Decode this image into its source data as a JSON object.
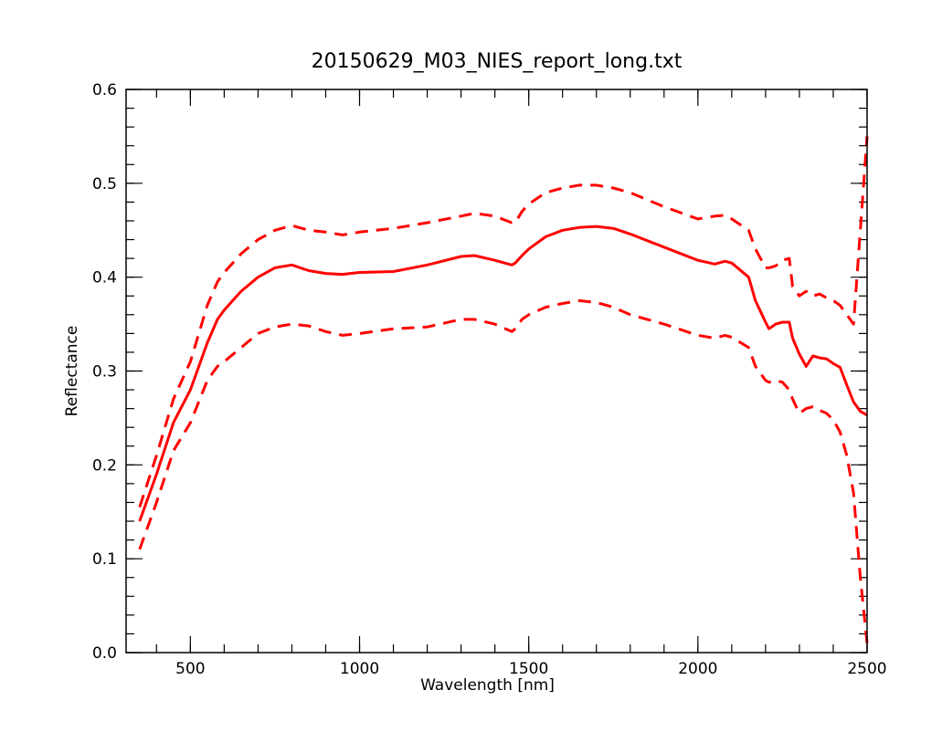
{
  "chart_data": {
    "type": "line",
    "title": "20150629_M03_NIES_report_long.txt",
    "xlabel": "Wavelength [nm]",
    "ylabel": "Reflectance",
    "xlim": [
      310,
      2500
    ],
    "ylim": [
      0.0,
      0.6
    ],
    "x_ticks": [
      500,
      1000,
      1500,
      2000,
      2500
    ],
    "x_tick_labels": [
      "500",
      "1000",
      "1500",
      "2000",
      "2500"
    ],
    "y_ticks": [
      0.0,
      0.1,
      0.2,
      0.3,
      0.4,
      0.5,
      0.6
    ],
    "y_tick_labels": [
      "0.0",
      "0.1",
      "0.2",
      "0.3",
      "0.4",
      "0.5",
      "0.6"
    ],
    "x_minor_step": 100,
    "y_minor_step": 0.02,
    "grid": false,
    "legend": "none",
    "colors": {
      "series": "#ff0000",
      "axes": "#000000"
    },
    "series": [
      {
        "style": "solid",
        "x": [
          350,
          400,
          450,
          500,
          550,
          580,
          600,
          650,
          700,
          750,
          800,
          850,
          900,
          950,
          1000,
          1100,
          1200,
          1300,
          1340,
          1400,
          1450,
          1460,
          1480,
          1500,
          1550,
          1600,
          1650,
          1700,
          1750,
          1800,
          1900,
          2000,
          2050,
          2080,
          2100,
          2150,
          2170,
          2200,
          2210,
          2230,
          2250,
          2270,
          2280,
          2300,
          2320,
          2340,
          2360,
          2380,
          2400,
          2420,
          2440,
          2460,
          2480,
          2500
        ],
        "y": [
          0.14,
          0.19,
          0.245,
          0.28,
          0.33,
          0.355,
          0.365,
          0.385,
          0.4,
          0.41,
          0.413,
          0.407,
          0.404,
          0.403,
          0.405,
          0.406,
          0.413,
          0.422,
          0.423,
          0.418,
          0.413,
          0.415,
          0.423,
          0.43,
          0.443,
          0.45,
          0.453,
          0.454,
          0.452,
          0.446,
          0.432,
          0.418,
          0.414,
          0.417,
          0.415,
          0.4,
          0.375,
          0.352,
          0.345,
          0.35,
          0.352,
          0.352,
          0.335,
          0.318,
          0.305,
          0.316,
          0.314,
          0.313,
          0.308,
          0.304,
          0.285,
          0.267,
          0.257,
          0.253
        ]
      },
      {
        "style": "dashed",
        "x": [
          350,
          400,
          450,
          500,
          550,
          580,
          600,
          650,
          700,
          750,
          800,
          850,
          900,
          950,
          1000,
          1100,
          1200,
          1300,
          1340,
          1400,
          1450,
          1460,
          1480,
          1500,
          1550,
          1600,
          1650,
          1700,
          1750,
          1800,
          1900,
          2000,
          2050,
          2080,
          2100,
          2150,
          2170,
          2200,
          2210,
          2230,
          2250,
          2270,
          2280,
          2300,
          2320,
          2340,
          2360,
          2380,
          2400,
          2420,
          2440,
          2460,
          2480,
          2500
        ],
        "y": [
          0.155,
          0.21,
          0.27,
          0.31,
          0.37,
          0.395,
          0.405,
          0.425,
          0.44,
          0.45,
          0.455,
          0.45,
          0.448,
          0.445,
          0.448,
          0.452,
          0.458,
          0.465,
          0.468,
          0.465,
          0.458,
          0.458,
          0.47,
          0.478,
          0.49,
          0.495,
          0.498,
          0.498,
          0.495,
          0.49,
          0.475,
          0.462,
          0.465,
          0.466,
          0.462,
          0.45,
          0.43,
          0.41,
          0.41,
          0.412,
          0.418,
          0.42,
          0.39,
          0.38,
          0.385,
          0.38,
          0.382,
          0.378,
          0.375,
          0.37,
          0.36,
          0.35,
          0.45,
          0.55
        ]
      },
      {
        "style": "dashed",
        "x": [
          350,
          400,
          450,
          500,
          550,
          580,
          600,
          650,
          700,
          750,
          800,
          850,
          900,
          950,
          1000,
          1100,
          1200,
          1300,
          1340,
          1400,
          1450,
          1460,
          1480,
          1500,
          1550,
          1600,
          1650,
          1700,
          1750,
          1800,
          1900,
          2000,
          2050,
          2080,
          2100,
          2150,
          2170,
          2200,
          2210,
          2230,
          2250,
          2270,
          2280,
          2300,
          2320,
          2340,
          2360,
          2380,
          2400,
          2420,
          2440,
          2460,
          2480,
          2500
        ],
        "y": [
          0.11,
          0.16,
          0.215,
          0.245,
          0.29,
          0.305,
          0.31,
          0.325,
          0.34,
          0.347,
          0.35,
          0.348,
          0.342,
          0.338,
          0.34,
          0.345,
          0.347,
          0.355,
          0.355,
          0.35,
          0.342,
          0.345,
          0.355,
          0.36,
          0.368,
          0.372,
          0.375,
          0.373,
          0.368,
          0.36,
          0.35,
          0.338,
          0.335,
          0.338,
          0.336,
          0.325,
          0.305,
          0.29,
          0.288,
          0.29,
          0.288,
          0.28,
          0.27,
          0.255,
          0.26,
          0.262,
          0.258,
          0.255,
          0.248,
          0.235,
          0.21,
          0.17,
          0.08,
          0.01
        ]
      }
    ]
  }
}
